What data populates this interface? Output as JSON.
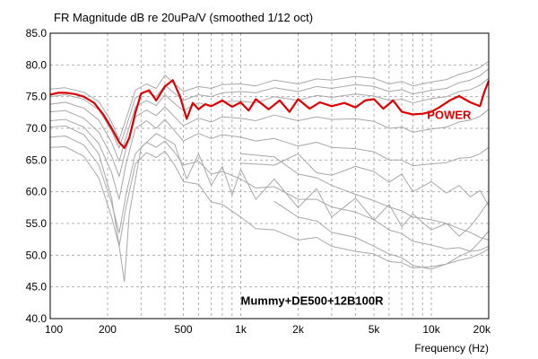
{
  "chart_data": {
    "type": "line",
    "title": "FR Magnitude dB re 20uPa/V (smoothed 1/12 oct)",
    "xlabel": "Frequency (Hz)",
    "ylabel": "",
    "x_scale": "log",
    "xlim": [
      100,
      20000
    ],
    "ylim": [
      40,
      85
    ],
    "grid": true,
    "x_ticks": [
      {
        "v": 100,
        "label": "100"
      },
      {
        "v": 200,
        "label": "200"
      },
      {
        "v": 500,
        "label": "500"
      },
      {
        "v": 1000,
        "label": "1k"
      },
      {
        "v": 2000,
        "label": "2k"
      },
      {
        "v": 5000,
        "label": "5k"
      },
      {
        "v": 10000,
        "label": "10k"
      },
      {
        "v": 20000,
        "label": "20k"
      }
    ],
    "y_ticks": [
      "40.0",
      "45.0",
      "50.0",
      "55.0",
      "60.0",
      "65.0",
      "70.0",
      "75.0",
      "80.0",
      "85.0"
    ],
    "annotations": [
      {
        "text": "Mummy+DE500+12B100R",
        "x": 1000,
        "y": 42.2
      },
      {
        "text": "POWER",
        "x": 9500,
        "y": 71.5
      }
    ],
    "colors": {
      "power": "#dd0000",
      "series": "#a8a8a8",
      "grid": "#b0b0b0"
    },
    "series": [
      {
        "name": "POWER",
        "highlight": true,
        "x": [
          100,
          110,
          120,
          135,
          150,
          170,
          190,
          210,
          230,
          245,
          260,
          280,
          300,
          330,
          360,
          400,
          440,
          480,
          520,
          560,
          600,
          650,
          700,
          800,
          900,
          1000,
          1100,
          1200,
          1400,
          1600,
          1800,
          2000,
          2300,
          2600,
          3000,
          3500,
          4000,
          4500,
          5000,
          5600,
          6300,
          7000,
          8000,
          9000,
          10000,
          11000,
          12500,
          14000,
          16000,
          18000,
          19000,
          20000
        ],
        "y": [
          75.3,
          75.6,
          75.6,
          75.4,
          75.0,
          74.0,
          72.2,
          70.0,
          67.8,
          66.9,
          68.5,
          72.5,
          75.5,
          76.0,
          74.4,
          76.6,
          77.6,
          75.0,
          71.5,
          74.0,
          73.0,
          73.8,
          73.5,
          74.4,
          73.4,
          74.1,
          72.8,
          74.6,
          73.0,
          74.4,
          72.6,
          74.6,
          73.1,
          74.1,
          73.5,
          74.0,
          73.3,
          74.4,
          74.6,
          73.1,
          74.4,
          72.6,
          72.2,
          72.3,
          72.6,
          73.3,
          74.4,
          75.1,
          74.1,
          73.5,
          75.8,
          77.5
        ]
      },
      {
        "name": "",
        "x": [
          100,
          120,
          150,
          180,
          210,
          230,
          250,
          280,
          320,
          360,
          400,
          450,
          500,
          600,
          700,
          800,
          1000,
          1200,
          1500,
          2000,
          2500,
          3000,
          4000,
          5000,
          6000,
          7000,
          8000,
          10000,
          12000,
          14000,
          16000,
          18000,
          20000
        ],
        "y": [
          76.2,
          76.4,
          75.7,
          74.2,
          71.0,
          68.2,
          71.5,
          76.0,
          77.0,
          76.3,
          78.4,
          77.0,
          75.8,
          76.6,
          76.3,
          76.9,
          77.0,
          76.7,
          77.6,
          77.0,
          77.8,
          77.6,
          78.2,
          77.9,
          77.0,
          77.4,
          76.7,
          77.3,
          77.7,
          78.5,
          79.0,
          79.6,
          80.6
        ]
      },
      {
        "name": "",
        "x": [
          100,
          120,
          150,
          180,
          210,
          230,
          250,
          280,
          320,
          360,
          400,
          450,
          500,
          600,
          700,
          800,
          1000,
          1200,
          1500,
          2000,
          2500,
          3000,
          4000,
          5000,
          6000,
          7000,
          8000,
          10000,
          12000,
          14000,
          16000,
          18000,
          20000
        ],
        "y": [
          75.0,
          75.3,
          74.6,
          72.9,
          69.6,
          66.9,
          70.2,
          74.8,
          75.8,
          75.0,
          76.8,
          75.5,
          74.4,
          75.3,
          75.0,
          75.6,
          75.8,
          75.6,
          76.4,
          75.8,
          76.6,
          76.3,
          76.9,
          76.6,
          75.8,
          76.1,
          75.4,
          76.0,
          76.3,
          77.2,
          77.6,
          78.3,
          79.4
        ]
      },
      {
        "name": "",
        "x": [
          100,
          120,
          150,
          180,
          210,
          230,
          250,
          280,
          320,
          360,
          400,
          450,
          500,
          600,
          700,
          800,
          1000,
          1200,
          1500,
          2000,
          2500,
          3000,
          4000,
          5000,
          6000,
          7000,
          8000,
          10000,
          12000,
          14000,
          16000,
          18000,
          20000
        ],
        "y": [
          73.8,
          74.1,
          73.2,
          71.3,
          67.8,
          64.8,
          68.6,
          73.4,
          74.4,
          73.6,
          75.3,
          73.9,
          72.8,
          74.0,
          73.5,
          74.2,
          74.3,
          74.0,
          75.0,
          74.4,
          75.2,
          74.9,
          75.4,
          75.1,
          74.4,
          74.6,
          74.0,
          74.7,
          75.0,
          75.8,
          76.1,
          76.8,
          77.9
        ]
      },
      {
        "name": "",
        "x": [
          100,
          120,
          150,
          180,
          210,
          230,
          250,
          280,
          320,
          360,
          400,
          450,
          500,
          600,
          700,
          800,
          1000,
          1200,
          1500,
          2000,
          2500,
          3000,
          4000,
          5000,
          6000,
          7000,
          8000,
          10000,
          12000,
          14000,
          16000,
          18000,
          20000
        ],
        "y": [
          72.6,
          72.8,
          71.6,
          69.4,
          65.6,
          62.4,
          66.8,
          71.8,
          72.9,
          72.0,
          73.4,
          71.8,
          70.4,
          71.6,
          71.0,
          71.8,
          71.6,
          71.2,
          72.1,
          71.2,
          71.8,
          71.4,
          71.5,
          71.1,
          70.0,
          70.2,
          69.4,
          69.9,
          70.2,
          71.0,
          71.3,
          71.9,
          73.0
        ]
      },
      {
        "name": "",
        "x": [
          100,
          120,
          150,
          180,
          210,
          230,
          250,
          280,
          320,
          360,
          400,
          450,
          500,
          600,
          700,
          800,
          1000,
          1200,
          1500,
          2000,
          2500,
          3000,
          4000,
          5000,
          6000,
          7000,
          8000,
          10000,
          12000,
          14000,
          16000,
          18000,
          20000
        ],
        "y": [
          71.2,
          71.4,
          70.2,
          67.6,
          63.0,
          58.8,
          64.4,
          70.0,
          71.2,
          70.0,
          71.4,
          69.6,
          68.0,
          69.2,
          68.4,
          69.0,
          68.6,
          68.0,
          68.4,
          67.2,
          67.8,
          67.0,
          66.8,
          66.3,
          65.0,
          65.0,
          64.1,
          64.4,
          64.6,
          65.3,
          65.4,
          66.0,
          67.0
        ]
      },
      {
        "name": "",
        "x": [
          100,
          120,
          150,
          180,
          210,
          230,
          245,
          260,
          300,
          360,
          450,
          520,
          600,
          700,
          800,
          900,
          1000,
          1200,
          1500,
          2000,
          2500,
          3000,
          4000,
          5000,
          6000,
          7000,
          8000,
          10000,
          12000,
          14000,
          16000,
          18000,
          20000
        ],
        "y": [
          70.2,
          70.4,
          69.0,
          66.0,
          59.0,
          51.5,
          45.8,
          56.5,
          67.0,
          69.2,
          67.5,
          62.0,
          66.0,
          61.0,
          64.0,
          59.5,
          63.5,
          58.8,
          62.0,
          57.5,
          60.5,
          56.0,
          59.0,
          55.5,
          58.0,
          54.5,
          56.5,
          54.0,
          55.0,
          53.0,
          54.5,
          56.5,
          58.5
        ]
      },
      {
        "name": "",
        "x": [
          100,
          120,
          150,
          180,
          210,
          230,
          250,
          280,
          320,
          360,
          400,
          450,
          500,
          600,
          700,
          800,
          1000,
          1200,
          1500,
          2000,
          2500,
          3000,
          4000,
          5000,
          6000,
          7000,
          8000,
          10000,
          12000,
          14000,
          16000,
          18000,
          20000
        ],
        "y": [
          68.6,
          68.8,
          67.4,
          64.2,
          58.2,
          53.5,
          59.6,
          66.0,
          67.8,
          67.0,
          68.0,
          66.2,
          64.2,
          64.8,
          62.8,
          63.2,
          62.0,
          60.6,
          60.8,
          58.8,
          58.8,
          57.6,
          56.8,
          55.6,
          54.0,
          53.4,
          52.2,
          51.6,
          51.0,
          51.2,
          50.6,
          50.8,
          51.4
        ]
      },
      {
        "name": "",
        "x": [
          100,
          120,
          150,
          180,
          210,
          230,
          250,
          280,
          320,
          360,
          400,
          450,
          500,
          600,
          700,
          800,
          1000,
          1200,
          1500,
          2000,
          2500,
          3000,
          4000,
          5000,
          6000,
          7000,
          8000,
          10000,
          12000,
          14000,
          16000,
          18000,
          20000
        ],
        "y": [
          67.0,
          67.1,
          65.6,
          62.2,
          56.0,
          51.4,
          57.6,
          64.4,
          66.2,
          65.4,
          66.4,
          64.2,
          61.6,
          61.2,
          58.4,
          58.0,
          56.0,
          54.2,
          54.0,
          52.4,
          52.8,
          51.4,
          50.6,
          50.2,
          49.0,
          48.8,
          48.0,
          48.2,
          48.6,
          49.2,
          49.6,
          50.2,
          51.0
        ]
      },
      {
        "name": "",
        "x": [
          1000,
          1500,
          2000,
          2500,
          3000,
          4000,
          5000,
          6000,
          7000,
          8000,
          10000,
          12000,
          14000,
          16000,
          18000,
          20000
        ],
        "y": [
          66.0,
          65.5,
          62.8,
          62.2,
          61.0,
          59.6,
          58.6,
          57.6,
          57.0,
          56.0,
          55.6,
          55.0,
          54.2,
          53.6,
          52.8,
          52.4
        ]
      },
      {
        "name": "",
        "x": [
          1000,
          1500,
          2000,
          2500,
          3000,
          4000,
          5000,
          6000,
          7000,
          8000,
          10000,
          12000,
          14000,
          16000,
          18000,
          20000
        ],
        "y": [
          64.5,
          64.2,
          66.0,
          63.0,
          62.6,
          64.0,
          63.2,
          61.5,
          62.8,
          60.0,
          61.6,
          59.8,
          61.0,
          59.2,
          60.2,
          57.8
        ]
      },
      {
        "name": "",
        "x": [
          1500,
          2000,
          2500,
          3000,
          4000,
          5000,
          6000,
          7000,
          8000,
          10000,
          12000,
          14000,
          16000,
          18000,
          20000
        ],
        "y": [
          58.5,
          56.0,
          55.4,
          53.6,
          52.8,
          51.4,
          50.2,
          49.6,
          48.4,
          47.8,
          48.6,
          49.8,
          50.6,
          52.2,
          53.8
        ]
      }
    ]
  }
}
